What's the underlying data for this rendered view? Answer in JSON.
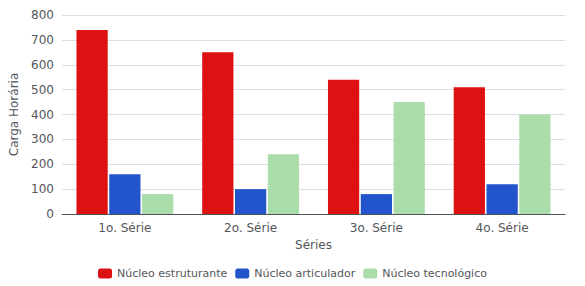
{
  "chart_data": {
    "type": "bar",
    "xlabel": "Séries",
    "ylabel": "Carga Horária",
    "categories": [
      "1o. Série",
      "2o. Série",
      "3o. Série",
      "4o. Série"
    ],
    "series": [
      {
        "name": "Núcleo estruturante",
        "color": "#dd1111",
        "values": [
          740,
          650,
          540,
          510
        ]
      },
      {
        "name": "Núcleo articulador",
        "color": "#2255cc",
        "values": [
          160,
          100,
          80,
          120
        ]
      },
      {
        "name": "Núcleo tecnológico",
        "color": "#aaddaa",
        "values": [
          80,
          240,
          450,
          400
        ]
      }
    ],
    "ylim": [
      0,
      800
    ],
    "yticks": [
      0,
      100,
      200,
      300,
      400,
      500,
      600,
      700,
      800
    ],
    "grid": true,
    "legend": "bottom"
  }
}
